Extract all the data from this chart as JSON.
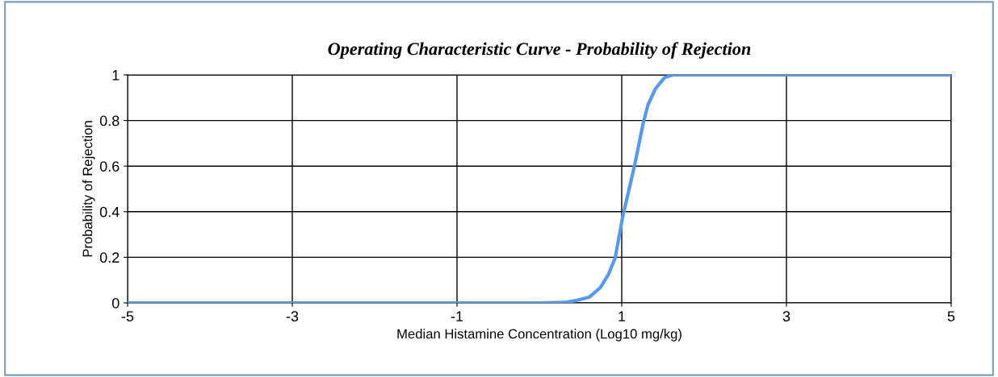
{
  "chart_data": {
    "type": "line",
    "title": "Operating Characteristic Curve - Probability of Rejection",
    "xlabel": "Median Histamine Concentration (Log10 mg/kg)",
    "ylabel": "Probability of Rejection",
    "x": [
      -5,
      -4,
      -3,
      -2,
      -1,
      0,
      0.3,
      0.44,
      0.61,
      0.74,
      0.84,
      0.92,
      1.01,
      1.1,
      1.16,
      1.26,
      1.32,
      1.41,
      1.52,
      1.62,
      2,
      3,
      4,
      5
    ],
    "series": [
      {
        "color": "#5599ee",
        "values": [
          0,
          0,
          0,
          0,
          0,
          0,
          0.002,
          0.01,
          0.026,
          0.067,
          0.126,
          0.197,
          0.374,
          0.516,
          0.61,
          0.787,
          0.87,
          0.94,
          0.988,
          1,
          1,
          1,
          1,
          1
        ]
      }
    ],
    "xlim": [
      -5,
      5
    ],
    "xticks": [
      -5,
      -3,
      -1,
      1,
      3,
      5
    ],
    "ylim": [
      0,
      1
    ],
    "yticks": [
      0,
      0.2,
      0.4,
      0.6,
      0.8,
      1
    ],
    "grid": true,
    "legend": false,
    "marker": "none",
    "line_style": "solid"
  }
}
